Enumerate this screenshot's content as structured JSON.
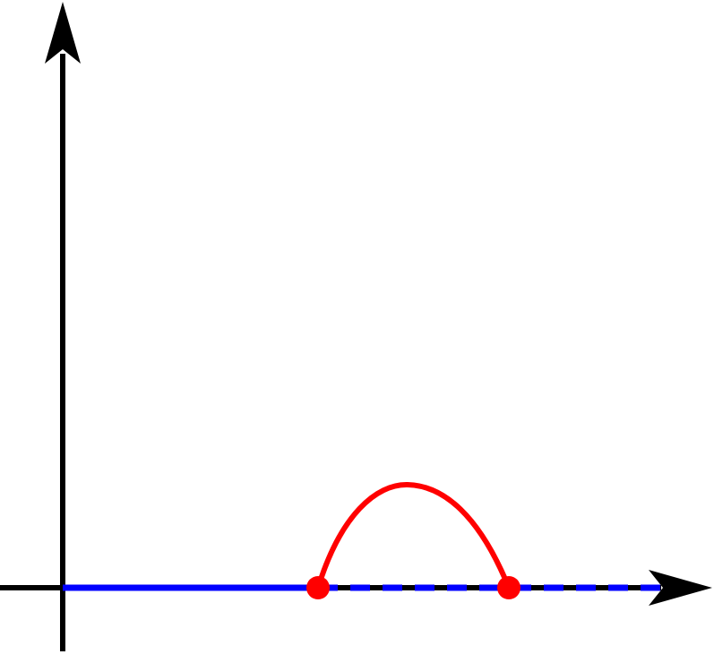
{
  "diagram": {
    "colors": {
      "axes": "#000000",
      "baseline": "#0000ff",
      "arc": "#ff0000",
      "points": "#ff0000",
      "background": "#ffffff"
    },
    "elements": {
      "x_axis": "arrow",
      "y_axis": "arrow",
      "baseline_solid": "solid",
      "baseline_dashed": "dashed",
      "arc": "curve",
      "markers": [
        "filled-circle",
        "filled-circle"
      ]
    }
  }
}
